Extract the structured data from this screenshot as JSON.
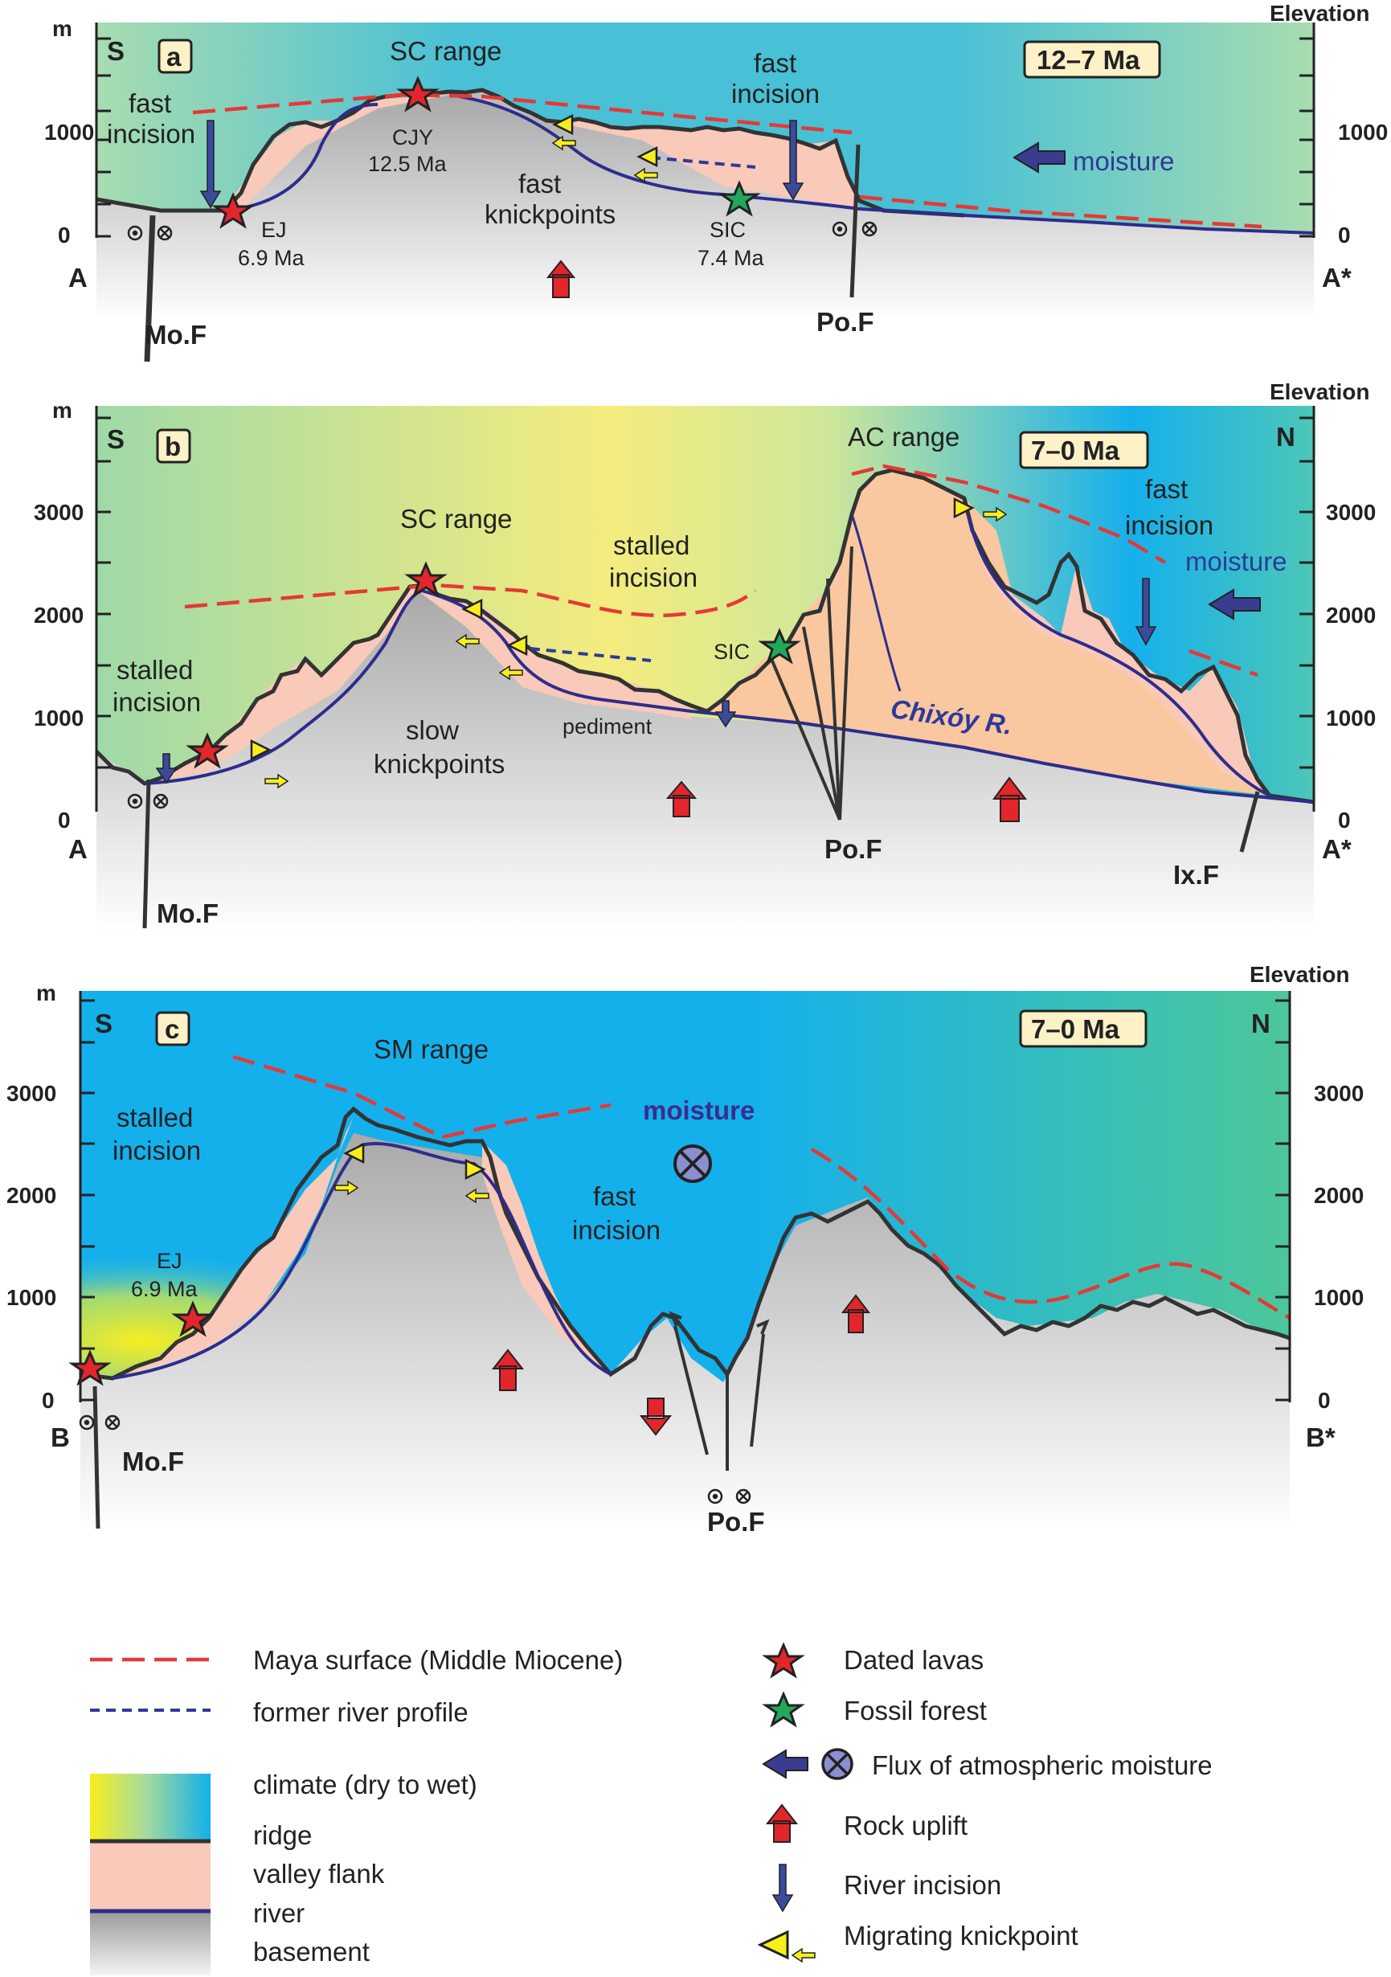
{
  "colors": {
    "maya_surface": "#e53935",
    "former_river": "#2d3a99",
    "river": "#2e2d8c",
    "ridge": "#333333",
    "valley_flank": "#f9c9b9",
    "valley_flank_ac": "#f9c7a0",
    "uplift": "#e3262c",
    "incision": "#3a4b9c",
    "knickpoint": "#f8ee1c",
    "dry": "#f7ee20",
    "wet": "#12b0ea",
    "green": "#4fc08d"
  },
  "common": {
    "elevation": "Elevation",
    "unit": "m",
    "south": "S",
    "north": "N",
    "fault_mo": "Mo.F",
    "fault_po": "Po.F",
    "fault_ix": "Ix.F"
  },
  "panel_a": {
    "letter": "a",
    "age": "12–7 Ma",
    "ticks": [
      "0",
      "1000"
    ],
    "left_end": "A",
    "right_end": "A*",
    "range": "SC range",
    "fast_incision_1": "fast",
    "fast_incision_2": "incision",
    "fast_incision_b1": "fast",
    "fast_incision_b2": "incision",
    "cjy_1": "CJY",
    "cjy_2": "12.5 Ma",
    "ej_1": "EJ",
    "ej_2": "6.9 Ma",
    "fastk_1": "fast",
    "fastk_2": "knickpoints",
    "sic_1": "SIC",
    "sic_2": "7.4 Ma",
    "moisture": "moisture"
  },
  "panel_b": {
    "letter": "b",
    "age": "7–0 Ma",
    "ticks": [
      "0",
      "1000",
      "2000",
      "3000"
    ],
    "left_end": "A",
    "right_end": "A*",
    "sc_range": "SC range",
    "ac_range": "AC range",
    "stalled_top_1": "stalled",
    "stalled_top_2": "incision",
    "stalled_left_1": "stalled",
    "stalled_left_2": "incision",
    "fast_1": "fast",
    "fast_2": "incision",
    "moisture": "moisture",
    "sic": "SIC",
    "slow_1": "slow",
    "slow_2": "knickpoints",
    "pediment": "pediment",
    "river_name": "Chixóy R."
  },
  "panel_c": {
    "letter": "c",
    "age": "7–0 Ma",
    "ticks": [
      "0",
      "1000",
      "2000",
      "3000"
    ],
    "left_end": "B",
    "right_end": "B*",
    "sm_range": "SM range",
    "stalled_1": "stalled",
    "stalled_2": "incision",
    "moisture": "moisture",
    "fast_1": "fast",
    "fast_2": "incision",
    "ej_1": "EJ",
    "ej_2": "6.9 Ma"
  },
  "legend": {
    "maya": "Maya surface (Middle Miocene)",
    "former": "former river profile",
    "climate": "climate (dry to wet)",
    "ridge": "ridge",
    "valley": "valley flank",
    "river": "river",
    "basement": "basement",
    "dated": "Dated lavas",
    "fossil": "Fossil forest",
    "flux": "Flux of atmospheric moisture",
    "uplift": "Rock uplift",
    "incision": "River incision",
    "knick": "Migrating knickpoint"
  }
}
